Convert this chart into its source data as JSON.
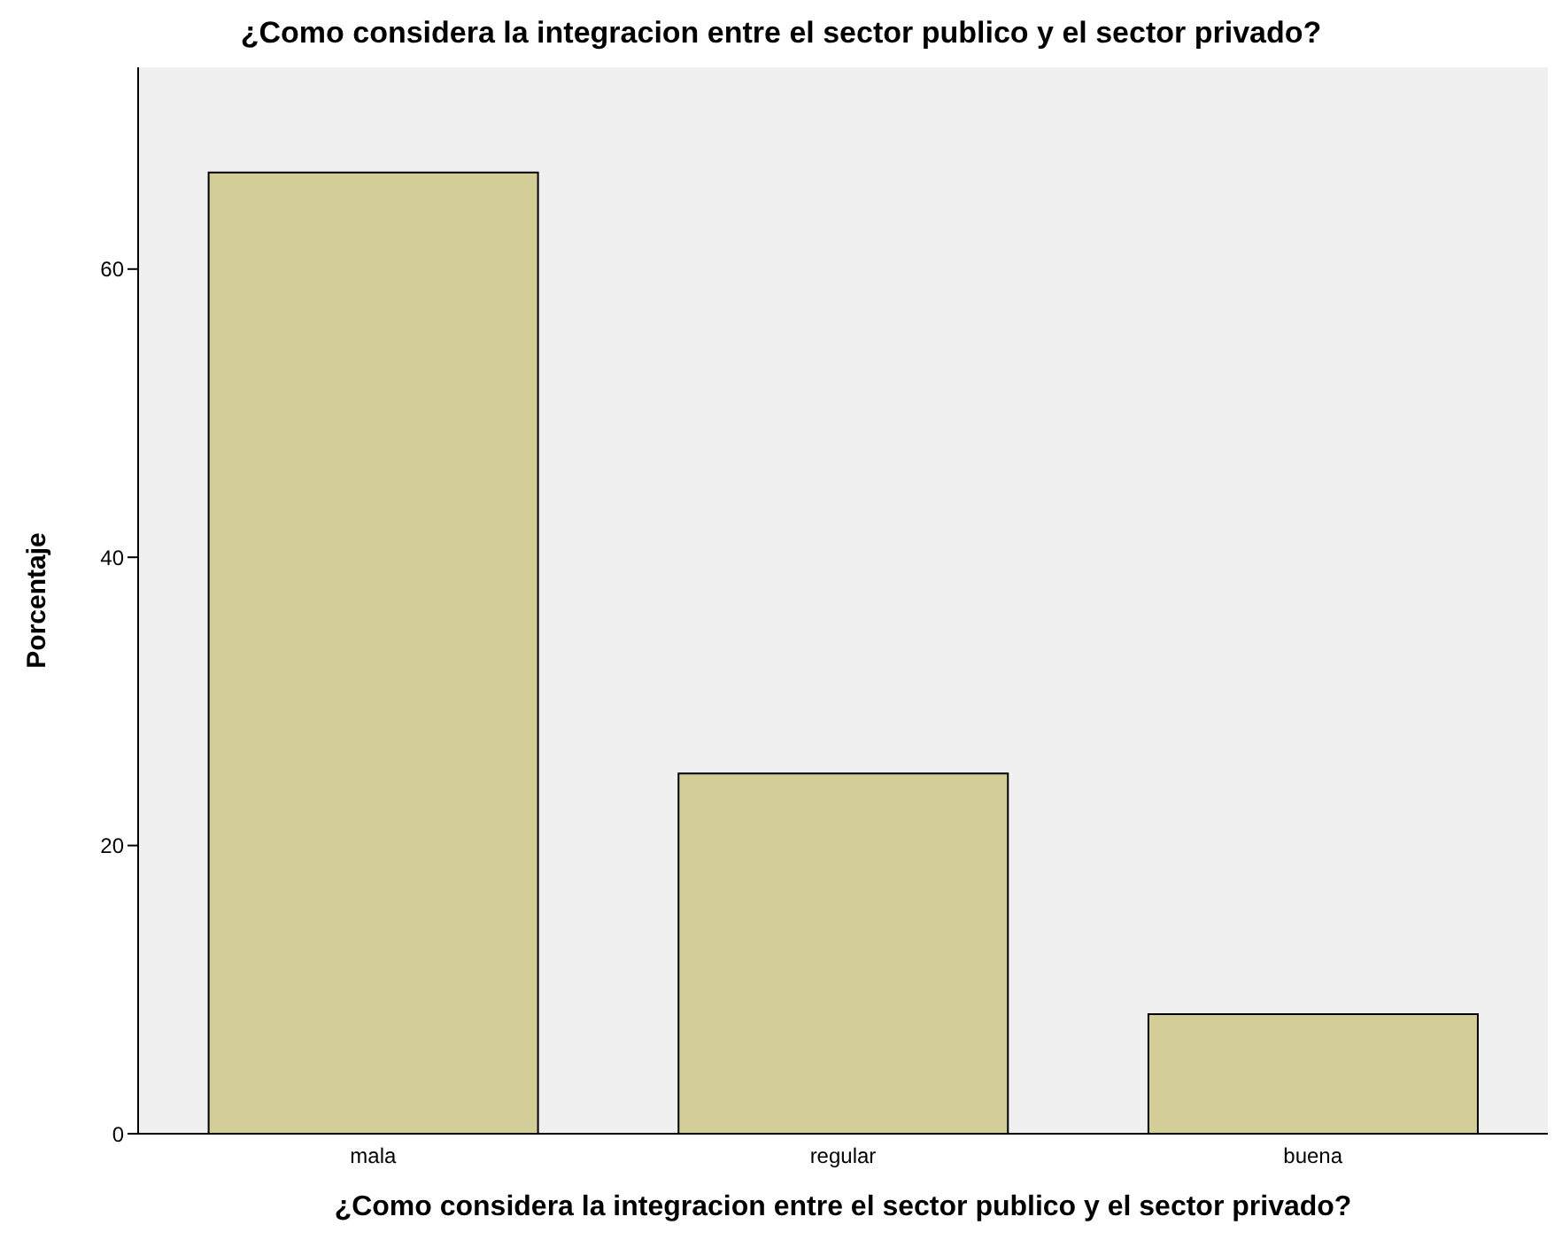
{
  "chart_data": {
    "type": "bar",
    "title": "¿Como considera la integracion entre el sector publico y el sector privado?",
    "xlabel": "¿Como considera la integracion entre el sector publico y el sector privado?",
    "ylabel": "Porcentaje",
    "categories": [
      "mala",
      "regular",
      "buena"
    ],
    "values": [
      66.7,
      25,
      8.3
    ],
    "color": "#d3ce98",
    "ylim": [
      0,
      74
    ],
    "yticks": [
      0,
      20,
      40,
      60
    ],
    "grid": false
  }
}
